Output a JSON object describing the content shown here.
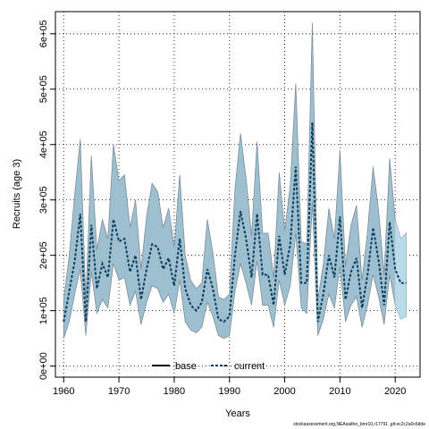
{
  "chart_data": {
    "type": "area",
    "xlabel": "Years",
    "ylabel": "Recruits (age 3)",
    "xlim": [
      1958.5,
      2024.5
    ],
    "ylim": [
      -20000,
      640000
    ],
    "x_ticks": [
      1960,
      1970,
      1980,
      1990,
      2000,
      2010,
      2020
    ],
    "y_ticks": [
      0,
      100000,
      200000,
      300000,
      400000,
      500000,
      600000
    ],
    "y_tick_labels": [
      "0e+00",
      "1e+05",
      "2e+05",
      "3e+05",
      "4e+05",
      "5e+05",
      "6e+05"
    ],
    "grid": true,
    "legend": {
      "placement": "bottom-center",
      "entries": [
        "base",
        "current"
      ]
    },
    "colors": {
      "band": "#9dbfcf",
      "band_edge": "#7f8f98",
      "current": "#0b3c5d",
      "base": "#000000",
      "forecast_band": "#bfe0ef"
    },
    "years": [
      1960,
      1961,
      1962,
      1963,
      1964,
      1965,
      1966,
      1967,
      1968,
      1969,
      1970,
      1971,
      1972,
      1973,
      1974,
      1975,
      1976,
      1977,
      1978,
      1979,
      1980,
      1981,
      1982,
      1983,
      1984,
      1985,
      1986,
      1987,
      1988,
      1989,
      1990,
      1991,
      1992,
      1993,
      1994,
      1995,
      1996,
      1997,
      1998,
      1999,
      2000,
      2001,
      2002,
      2003,
      2004,
      2005,
      2006,
      2007,
      2008,
      2009,
      2010,
      2011,
      2012,
      2013,
      2014,
      2015,
      2016,
      2017,
      2018,
      2019,
      2020,
      2021,
      2022
    ],
    "series": [
      {
        "name": "current",
        "values": [
          80000,
          135000,
          190000,
          275000,
          80000,
          255000,
          140000,
          185000,
          160000,
          265000,
          225000,
          230000,
          170000,
          200000,
          120000,
          175000,
          220000,
          215000,
          175000,
          195000,
          145000,
          230000,
          140000,
          110000,
          100000,
          115000,
          175000,
          140000,
          85000,
          80000,
          90000,
          200000,
          280000,
          230000,
          160000,
          275000,
          165000,
          165000,
          110000,
          235000,
          165000,
          220000,
          360000,
          150000,
          150000,
          440000,
          80000,
          130000,
          200000,
          160000,
          270000,
          120000,
          170000,
          195000,
          105000,
          165000,
          250000,
          190000,
          110000,
          260000,
          175000,
          150000,
          150000
        ],
        "lower": [
          50000,
          80000,
          130000,
          175000,
          55000,
          170000,
          95000,
          120000,
          105000,
          185000,
          155000,
          160000,
          110000,
          135000,
          75000,
          115000,
          145000,
          140000,
          115000,
          130000,
          95000,
          155000,
          80000,
          65000,
          60000,
          70000,
          115000,
          90000,
          55000,
          50000,
          55000,
          135000,
          185000,
          150000,
          110000,
          190000,
          110000,
          110000,
          70000,
          155000,
          110000,
          145000,
          240000,
          105000,
          95000,
          295000,
          55000,
          85000,
          130000,
          105000,
          180000,
          80000,
          110000,
          125000,
          70000,
          110000,
          165000,
          125000,
          75000,
          165000,
          110000,
          85000,
          90000
        ],
        "upper": [
          120000,
          200000,
          310000,
          410000,
          120000,
          380000,
          210000,
          265000,
          230000,
          400000,
          335000,
          345000,
          250000,
          300000,
          175000,
          270000,
          330000,
          315000,
          250000,
          285000,
          215000,
          345000,
          200000,
          155000,
          140000,
          150000,
          265000,
          205000,
          125000,
          120000,
          130000,
          320000,
          420000,
          340000,
          235000,
          405000,
          240000,
          240000,
          160000,
          350000,
          245000,
          325000,
          510000,
          225000,
          220000,
          620000,
          120000,
          185000,
          285000,
          230000,
          390000,
          180000,
          255000,
          290000,
          155000,
          245000,
          360000,
          280000,
          165000,
          375000,
          265000,
          230000,
          240000
        ]
      },
      {
        "name": "base",
        "values": []
      }
    ]
  },
  "footnote": "stockassessment.org,NEAsaithe_bmr10,r17791 ,git:ec2c2a0c6dde"
}
